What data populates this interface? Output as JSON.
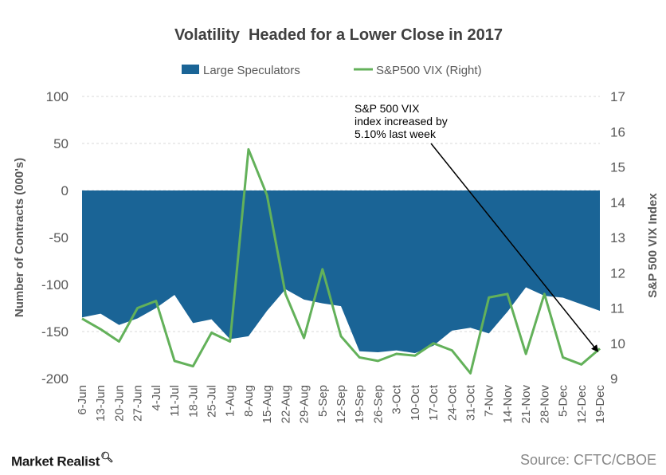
{
  "branding": {
    "logo_text": "Market Realist",
    "logo_icon": "magnifier-q-icon",
    "source": "Source: CFTC/CBOE"
  },
  "colors": {
    "area": "#1a6496",
    "line": "#63b15a",
    "grid": "#d9d9d9",
    "text": "#595959",
    "title": "#404040"
  },
  "chart_data": {
    "type": "area",
    "title": "Volatility  Headed for a Lower Close in 2017",
    "ylabel": "Number of Contracts (000's)",
    "y2label": "S&P 500 VIX Index",
    "ylim": [
      -200,
      100
    ],
    "yticks": [
      "100",
      "50",
      "0",
      "-50",
      "-100",
      "-150",
      "-200"
    ],
    "y2lim": [
      9,
      17
    ],
    "y2ticks": [
      "17",
      "16",
      "15",
      "14",
      "13",
      "12",
      "11",
      "10",
      "9"
    ],
    "grid": true,
    "legend_position": "top",
    "categories": [
      "6-Jun",
      "13-Jun",
      "20-Jun",
      "27-Jun",
      "4-Jul",
      "11-Jul",
      "18-Jul",
      "25-Jul",
      "1-Aug",
      "8-Aug",
      "15-Aug",
      "22-Aug",
      "29-Aug",
      "5-Sep",
      "12-Sep",
      "19-Sep",
      "26-Sep",
      "3-Oct",
      "10-Oct",
      "17-Oct",
      "24-Oct",
      "31-Oct",
      "7-Nov",
      "14-Nov",
      "21-Nov",
      "28-Nov",
      "5-Dec",
      "12-Dec",
      "19-Dec"
    ],
    "series": [
      {
        "name": "Large Speculators",
        "type": "area",
        "axis": "left",
        "values": [
          -135,
          -131,
          -143,
          -136,
          -125,
          -111,
          -141,
          -137,
          -158,
          -155,
          -128,
          -105,
          -116,
          -120,
          -123,
          -171,
          -172,
          -170,
          -173,
          -165,
          -149,
          -146,
          -152,
          -129,
          -103,
          -112,
          -114,
          -121,
          -128
        ]
      },
      {
        "name": "S&P500 VIX (Right)",
        "type": "line",
        "axis": "right",
        "values": [
          10.7,
          10.4,
          10.05,
          11.0,
          11.2,
          9.5,
          9.35,
          10.3,
          10.05,
          15.5,
          14.2,
          11.4,
          10.15,
          12.1,
          10.2,
          9.6,
          9.5,
          9.7,
          9.65,
          10.0,
          9.8,
          9.15,
          11.3,
          11.4,
          9.7,
          11.4,
          9.6,
          9.4,
          9.85
        ]
      }
    ],
    "annotation": {
      "lines": [
        "S&P 500 VIX",
        "index increased by",
        "5.10% last week"
      ],
      "target_category": "19-Dec",
      "target_series": "S&P500 VIX (Right)"
    }
  }
}
